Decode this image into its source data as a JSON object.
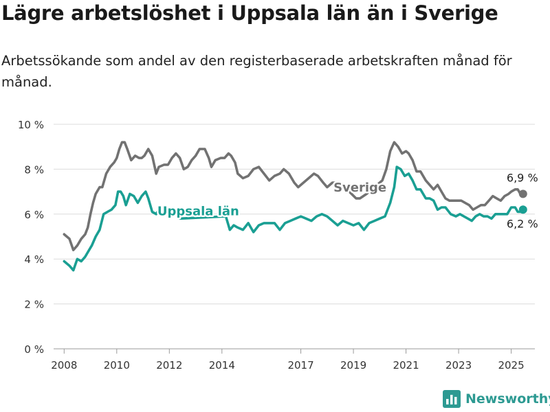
{
  "header": {
    "title": "Lägre arbetslöshet i Uppsala län än i Sverige",
    "subtitle": "Arbetssökande som andel av den registerbaserade arbetskraften månad för månad."
  },
  "brand": {
    "name": "Newsworthy",
    "color": "#2d9a92",
    "icon": "bar-chart-logo-icon"
  },
  "chart_data": {
    "type": "line",
    "ylim": [
      0,
      10
    ],
    "yticks": [
      0,
      2,
      4,
      6,
      8,
      10
    ],
    "ytick_labels": [
      "0 %",
      "2 %",
      "4 %",
      "6 %",
      "8 %",
      "10 %"
    ],
    "xlim": [
      2007.6,
      2025.9
    ],
    "xticks": [
      2008,
      2010,
      2012,
      2014,
      2017,
      2019,
      2021,
      2023,
      2025
    ],
    "xtick_labels": [
      "2008",
      "2010",
      "2012",
      "2014",
      "2017",
      "2019",
      "2021",
      "2023",
      "2025"
    ],
    "grid": true,
    "series": [
      {
        "name": "Sverige",
        "color": "#727272",
        "end_label": "6,9 %",
        "x": [
          2008.0,
          2008.2,
          2008.35,
          2008.5,
          2008.65,
          2008.8,
          2008.9,
          2009.0,
          2009.1,
          2009.2,
          2009.35,
          2009.45,
          2009.6,
          2009.75,
          2009.9,
          2010.0,
          2010.1,
          2010.2,
          2010.3,
          2010.4,
          2010.55,
          2010.7,
          2010.85,
          2010.95,
          2011.05,
          2011.2,
          2011.35,
          2011.5,
          2011.6,
          2011.8,
          2011.95,
          2012.1,
          2012.25,
          2012.4,
          2012.55,
          2012.7,
          2012.85,
          2013.0,
          2013.15,
          2013.35,
          2013.5,
          2013.6,
          2013.75,
          2013.95,
          2014.1,
          2014.25,
          2014.35,
          2014.5,
          2014.6,
          2014.8,
          2015.0,
          2015.2,
          2015.4,
          2015.6,
          2015.8,
          2016.0,
          2016.2,
          2016.35,
          2016.55,
          2016.75,
          2016.9,
          2017.1,
          2017.3,
          2017.5,
          2017.65,
          2017.85,
          2018.0,
          2018.2,
          2018.35,
          2018.5,
          2019.1,
          2019.25,
          2019.5,
          2019.7,
          2019.9,
          2020.1,
          2020.25,
          2020.4,
          2020.55,
          2020.7,
          2020.85,
          2021.0,
          2021.1,
          2021.25,
          2021.4,
          2021.55,
          2021.75,
          2021.9,
          2022.05,
          2022.2,
          2022.35,
          2022.5,
          2022.65,
          2022.8,
          2022.95,
          2023.1,
          2023.25,
          2023.4,
          2023.55,
          2023.7,
          2023.85,
          2024.0,
          2024.15,
          2024.3,
          2024.45,
          2024.6,
          2024.75,
          2024.9,
          2025.0,
          2025.15,
          2025.25,
          2025.35,
          2025.45
        ],
        "y": [
          5.1,
          4.9,
          4.4,
          4.6,
          4.9,
          5.1,
          5.4,
          6.0,
          6.5,
          6.9,
          7.2,
          7.2,
          7.8,
          8.1,
          8.3,
          8.5,
          8.9,
          9.2,
          9.2,
          8.9,
          8.4,
          8.6,
          8.5,
          8.5,
          8.6,
          8.9,
          8.6,
          7.8,
          8.1,
          8.2,
          8.2,
          8.5,
          8.7,
          8.5,
          8.0,
          8.1,
          8.4,
          8.6,
          8.9,
          8.9,
          8.5,
          8.1,
          8.4,
          8.5,
          8.5,
          8.7,
          8.6,
          8.3,
          7.8,
          7.6,
          7.7,
          8.0,
          8.1,
          7.8,
          7.5,
          7.7,
          7.8,
          8.0,
          7.8,
          7.4,
          7.2,
          7.4,
          7.6,
          7.8,
          7.7,
          7.4,
          7.2,
          7.4,
          7.4,
          7.4,
          6.7,
          6.7,
          6.9,
          7.1,
          7.3,
          7.5,
          8.0,
          8.8,
          9.2,
          9.0,
          8.7,
          8.8,
          8.7,
          8.4,
          7.9,
          7.9,
          7.5,
          7.3,
          7.1,
          7.3,
          7.0,
          6.7,
          6.6,
          6.6,
          6.6,
          6.6,
          6.5,
          6.4,
          6.2,
          6.3,
          6.4,
          6.4,
          6.6,
          6.8,
          6.7,
          6.6,
          6.8,
          6.9,
          7.0,
          7.1,
          7.1,
          6.9,
          6.9
        ]
      },
      {
        "name": "Uppsala län",
        "color": "#1a9f93",
        "end_label": "6,2 %",
        "x": [
          2008.0,
          2008.2,
          2008.35,
          2008.5,
          2008.65,
          2008.8,
          2008.9,
          2009.05,
          2009.2,
          2009.35,
          2009.5,
          2009.65,
          2009.8,
          2009.95,
          2010.05,
          2010.15,
          2010.25,
          2010.35,
          2010.5,
          2010.65,
          2010.8,
          2010.95,
          2011.1,
          2011.2,
          2011.35,
          2011.5,
          2011.65,
          2011.8,
          2011.95,
          2012.1,
          2012.25,
          2012.4,
          2014.15,
          2014.3,
          2014.45,
          2014.6,
          2014.8,
          2015.0,
          2015.2,
          2015.4,
          2015.6,
          2015.8,
          2016.0,
          2016.2,
          2016.4,
          2016.6,
          2016.8,
          2017.0,
          2017.2,
          2017.4,
          2017.6,
          2017.8,
          2018.0,
          2018.2,
          2018.4,
          2018.6,
          2018.8,
          2019.0,
          2019.2,
          2019.4,
          2019.6,
          2019.8,
          2020.0,
          2020.2,
          2020.4,
          2020.55,
          2020.65,
          2020.8,
          2020.95,
          2021.1,
          2021.25,
          2021.4,
          2021.55,
          2021.75,
          2021.9,
          2022.05,
          2022.2,
          2022.35,
          2022.5,
          2022.7,
          2022.9,
          2023.05,
          2023.2,
          2023.35,
          2023.5,
          2023.65,
          2023.8,
          2023.95,
          2024.1,
          2024.25,
          2024.4,
          2024.55,
          2024.7,
          2024.85,
          2025.0,
          2025.15,
          2025.25,
          2025.35,
          2025.45
        ],
        "y": [
          3.9,
          3.7,
          3.5,
          4.0,
          3.9,
          4.1,
          4.3,
          4.6,
          5.0,
          5.3,
          6.0,
          6.1,
          6.2,
          6.4,
          7.0,
          7.0,
          6.8,
          6.4,
          6.9,
          6.8,
          6.5,
          6.8,
          7.0,
          6.7,
          6.1,
          6.0,
          6.3,
          6.1,
          6.0,
          6.2,
          6.1,
          5.8,
          5.9,
          5.3,
          5.5,
          5.4,
          5.3,
          5.6,
          5.2,
          5.5,
          5.6,
          5.6,
          5.6,
          5.3,
          5.6,
          5.7,
          5.8,
          5.9,
          5.8,
          5.7,
          5.9,
          6.0,
          5.9,
          5.7,
          5.5,
          5.7,
          5.6,
          5.5,
          5.6,
          5.3,
          5.6,
          5.7,
          5.8,
          5.9,
          6.5,
          7.2,
          8.1,
          8.0,
          7.7,
          7.8,
          7.5,
          7.1,
          7.1,
          6.7,
          6.7,
          6.6,
          6.2,
          6.3,
          6.3,
          6.0,
          5.9,
          6.0,
          5.9,
          5.8,
          5.7,
          5.9,
          6.0,
          5.9,
          5.9,
          5.8,
          6.0,
          6.0,
          6.0,
          6.0,
          6.3,
          6.3,
          6.1,
          6.1,
          6.2
        ]
      }
    ]
  }
}
